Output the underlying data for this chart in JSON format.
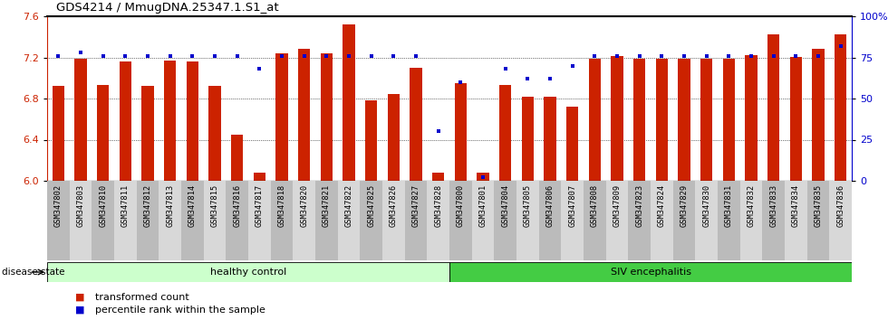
{
  "title": "GDS4214 / MmugDNA.25347.1.S1_at",
  "samples": [
    "GSM347802",
    "GSM347803",
    "GSM347810",
    "GSM347811",
    "GSM347812",
    "GSM347813",
    "GSM347814",
    "GSM347815",
    "GSM347816",
    "GSM347817",
    "GSM347818",
    "GSM347820",
    "GSM347821",
    "GSM347822",
    "GSM347825",
    "GSM347826",
    "GSM347827",
    "GSM347828",
    "GSM347800",
    "GSM347801",
    "GSM347804",
    "GSM347805",
    "GSM347806",
    "GSM347807",
    "GSM347808",
    "GSM347809",
    "GSM347823",
    "GSM347824",
    "GSM347829",
    "GSM347830",
    "GSM347831",
    "GSM347832",
    "GSM347833",
    "GSM347834",
    "GSM347835",
    "GSM347836"
  ],
  "bar_values": [
    6.92,
    7.19,
    6.93,
    7.16,
    6.92,
    7.17,
    7.16,
    6.92,
    6.45,
    6.08,
    7.24,
    7.28,
    7.24,
    7.52,
    6.78,
    6.84,
    7.1,
    6.08,
    6.95,
    6.08,
    6.93,
    6.82,
    6.82,
    6.72,
    7.19,
    7.21,
    7.19,
    7.19,
    7.19,
    7.19,
    7.19,
    7.22,
    7.42,
    7.2,
    7.28,
    7.42
  ],
  "percentile_values": [
    76,
    78,
    76,
    76,
    76,
    76,
    76,
    76,
    76,
    68,
    76,
    76,
    76,
    76,
    76,
    76,
    76,
    30,
    60,
    2,
    68,
    62,
    62,
    70,
    76,
    76,
    76,
    76,
    76,
    76,
    76,
    76,
    76,
    76,
    76,
    82
  ],
  "ylim_left": [
    6.0,
    7.6
  ],
  "ylim_right": [
    0,
    100
  ],
  "yticks_left": [
    6.0,
    6.4,
    6.8,
    7.2,
    7.6
  ],
  "yticks_right": [
    0,
    25,
    50,
    75,
    100
  ],
  "bar_color": "#CC2200",
  "dot_color": "#0000CC",
  "healthy_count": 18,
  "label_healthy": "healthy control",
  "label_siv": "SIV encephalitis",
  "label_disease": "disease state",
  "legend_bar": "transformed count",
  "legend_dot": "percentile rank within the sample",
  "healthy_bg": "#CCFFCC",
  "siv_bg": "#44CC44"
}
